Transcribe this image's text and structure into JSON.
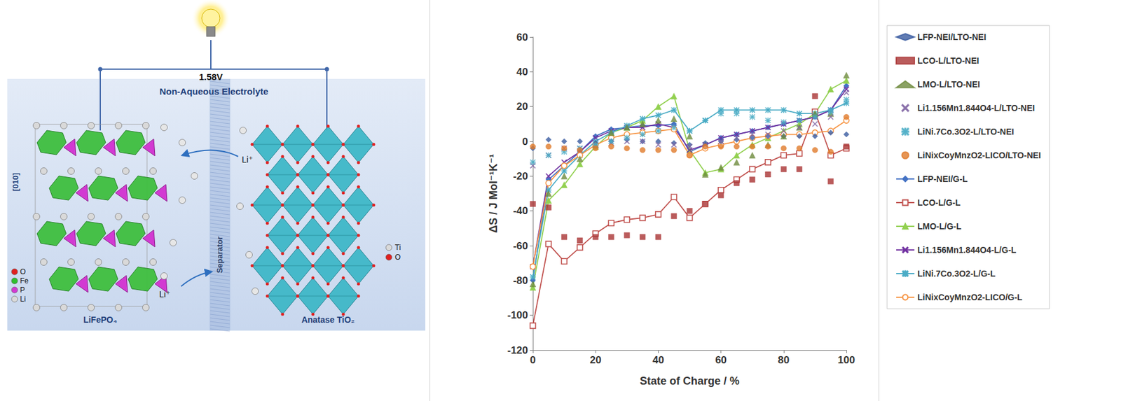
{
  "diagram": {
    "voltage": "1.58V",
    "electrolyte": "Non-Aqueous Electrolyte",
    "separator": "Separator",
    "direction": "[010]",
    "ion_labels": [
      "Li⁺",
      "Li⁺"
    ],
    "cathode": {
      "label": "LiFePO₄",
      "elements": [
        "O",
        "Fe",
        "P",
        "Li"
      ]
    },
    "anode": {
      "label": "Anatase TiO₂",
      "elements": [
        "Ti",
        "O"
      ]
    }
  },
  "chart_data": {
    "type": "line",
    "xlabel": "State of Charge / %",
    "ylabel": "ΔS / J Mol⁻¹K⁻¹",
    "x": [
      0,
      5,
      10,
      15,
      20,
      25,
      30,
      35,
      40,
      45,
      50,
      55,
      60,
      65,
      70,
      75,
      80,
      85,
      90,
      95,
      100
    ],
    "xlim": [
      0,
      100
    ],
    "xticks": [
      0,
      20,
      40,
      60,
      80,
      100
    ],
    "ylim": [
      -120,
      60
    ],
    "yticks": [
      -120,
      -100,
      -80,
      -60,
      -40,
      -20,
      0,
      20,
      40,
      60
    ],
    "grid": false,
    "legend": "right",
    "series": [
      {
        "name": "LFP-NEI/LTO-NEI",
        "type": "scatter",
        "color": "#3a5ba0",
        "marker": "diamond",
        "values": [
          -4,
          1,
          0,
          0,
          -1,
          0,
          1,
          0,
          0,
          -1,
          -2,
          -1,
          0,
          1,
          2,
          3,
          3,
          3,
          3,
          5,
          4
        ]
      },
      {
        "name": "LCO-L/LTO-NEI",
        "type": "scatter",
        "color": "#a93333",
        "marker": "square",
        "values": [
          -36,
          -38,
          -55,
          -57,
          -55,
          -55,
          -54,
          -55,
          -55,
          -43,
          -40,
          -36,
          -31,
          -24,
          -22,
          -19,
          -16,
          -16,
          26,
          -23,
          -3
        ]
      },
      {
        "name": "LMO-L/LTO-NEI",
        "type": "scatter",
        "color": "#6e8b3d",
        "marker": "triangle",
        "values": [
          -82,
          -30,
          -20,
          -10,
          -2,
          5,
          8,
          10,
          12,
          13,
          3,
          -19,
          -15,
          -12,
          -8,
          -2,
          3,
          8,
          16,
          16,
          38
        ]
      },
      {
        "name": "Li1.156Mn1.844O4-L/LTO-NEI",
        "type": "scatter",
        "color": "#8064a2",
        "marker": "x",
        "values": [
          -14,
          -8,
          -4,
          -4,
          -2,
          -1,
          0,
          0,
          -2,
          -2,
          -3,
          -2,
          0,
          2,
          4,
          4,
          6,
          8,
          10,
          14,
          28
        ]
      },
      {
        "name": "LiNi.7Co.3O2-L/LTO-NEI",
        "type": "scatter",
        "color": "#4bacc6",
        "marker": "asterisk",
        "values": [
          -12,
          -8,
          -6,
          -4,
          -2,
          0,
          2,
          4,
          6,
          8,
          6,
          12,
          16,
          16,
          14,
          12,
          11,
          12,
          14,
          17,
          24
        ]
      },
      {
        "name": "LiNixCoyMnzO2-LICO/LTO-NEI",
        "type": "scatter",
        "color": "#e07b2a",
        "marker": "circle",
        "values": [
          -3,
          -3,
          -4,
          -5,
          -4,
          -3,
          -4,
          -5,
          -5,
          -5,
          -8,
          -3,
          -3,
          -3,
          -3,
          -3,
          -4,
          -4,
          -5,
          -6,
          14
        ]
      },
      {
        "name": "LFP-NEI/G-L",
        "type": "line",
        "color": "#4472c4",
        "marker": "diamond",
        "values": [
          -80,
          -22,
          -14,
          -6,
          3,
          7,
          8,
          9,
          9,
          10,
          -6,
          -2,
          2,
          4,
          6,
          8,
          10,
          12,
          14,
          18,
          32
        ]
      },
      {
        "name": "LCO-L/G-L",
        "type": "line",
        "color": "#c0504d",
        "marker": "open square",
        "values": [
          -106,
          -59,
          -69,
          -61,
          -53,
          -47,
          -45,
          -44,
          -42,
          -32,
          -44,
          -36,
          -28,
          -22,
          -16,
          -12,
          -8,
          -7,
          17,
          -8,
          -4
        ]
      },
      {
        "name": "LMO-L/G-L",
        "type": "line",
        "color": "#92d050",
        "marker": "triangle",
        "values": [
          -84,
          -34,
          -25,
          -13,
          -3,
          5,
          8,
          12,
          20,
          26,
          -5,
          -18,
          -16,
          -8,
          -2,
          2,
          6,
          10,
          16,
          30,
          35
        ]
      },
      {
        "name": "Li1.156Mn1.844O4-L/G-L",
        "type": "line",
        "color": "#7030a0",
        "marker": "x",
        "values": [
          -72,
          -20,
          -12,
          -6,
          2,
          6,
          8,
          8,
          10,
          8,
          -5,
          -2,
          2,
          4,
          6,
          8,
          10,
          12,
          14,
          18,
          30
        ]
      },
      {
        "name": "LiNi.7Co.3O2-L/G-L",
        "type": "line",
        "color": "#4bacc6",
        "marker": "asterisk",
        "values": [
          -78,
          -28,
          -17,
          -8,
          0,
          5,
          9,
          13,
          15,
          18,
          6,
          12,
          18,
          18,
          18,
          18,
          18,
          16,
          16,
          18,
          22
        ]
      },
      {
        "name": "LiNixCoyMnzO2-LICO/G-L",
        "type": "line",
        "color": "#f79646",
        "marker": "open circle",
        "values": [
          -72,
          -24,
          -14,
          -8,
          -2,
          2,
          4,
          5,
          6,
          7,
          -8,
          -4,
          -2,
          0,
          2,
          3,
          4,
          4,
          5,
          6,
          12
        ]
      }
    ]
  }
}
